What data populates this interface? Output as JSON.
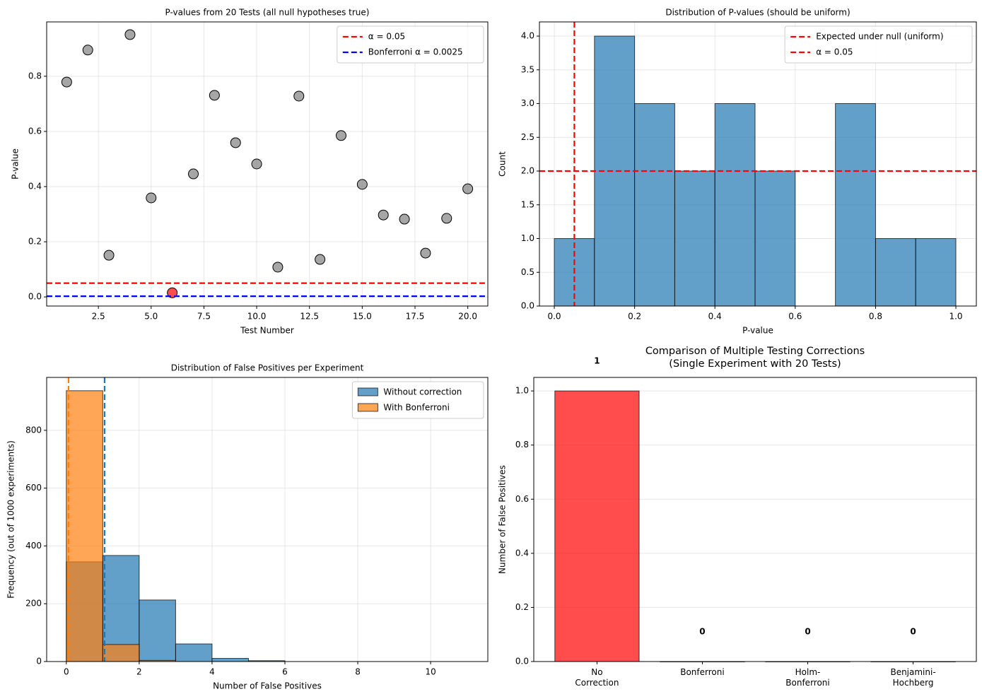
{
  "chart_data": [
    {
      "type": "scatter",
      "title": "P-values from 20 Tests (all null hypotheses true)",
      "x_label": "Test Number",
      "y_label": "P-value",
      "x": [
        1,
        2,
        3,
        4,
        5,
        6,
        7,
        8,
        9,
        10,
        11,
        12,
        13,
        14,
        15,
        16,
        17,
        18,
        19,
        20
      ],
      "values": [
        0.779,
        0.895,
        0.151,
        0.951,
        0.359,
        0.015,
        0.446,
        0.731,
        0.559,
        0.482,
        0.108,
        0.728,
        0.136,
        0.585,
        0.408,
        0.297,
        0.282,
        0.159,
        0.285,
        0.392
      ],
      "colors": [
        "#808080",
        "#808080",
        "#808080",
        "#808080",
        "#808080",
        "#ff0000",
        "#808080",
        "#808080",
        "#808080",
        "#808080",
        "#808080",
        "#808080",
        "#808080",
        "#808080",
        "#808080",
        "#808080",
        "#808080",
        "#808080",
        "#808080",
        "#808080"
      ],
      "hlines": [
        {
          "value": 0.05,
          "color": "#ff0000",
          "name": "α = 0.05"
        },
        {
          "value": 0.0025,
          "color": "#0000ff",
          "name": "Bonferroni α = 0.0025"
        }
      ],
      "xlim": [
        0.05,
        20.95
      ],
      "ylim": [
        -0.033,
        0.997
      ],
      "xticks": [
        2.5,
        {
          "value": 5,
          "label": "5.0"
        },
        7.5,
        {
          "value": 10,
          "label": "10.0"
        },
        12.5,
        {
          "value": 15,
          "label": "15.0"
        },
        17.5,
        {
          "value": 20,
          "label": "20.0"
        }
      ],
      "yticks": [
        {
          "value": 0,
          "label": "0.0"
        },
        0.2,
        0.4,
        0.6,
        0.8
      ],
      "grid": true,
      "legend": "upper right"
    },
    {
      "type": "histogram",
      "title": "Distribution of P-values (should be uniform)",
      "x_label": "P-value",
      "y_label": "Count",
      "bins": [
        0,
        0.1,
        0.2,
        0.3,
        0.4,
        0.5,
        0.6,
        0.7,
        0.8,
        0.9,
        1.0
      ],
      "values": [
        1,
        4,
        3,
        2,
        3,
        2,
        0,
        3,
        1,
        1
      ],
      "color": "#1f77b4",
      "hlines": [
        {
          "value": 2,
          "color": "#ff0000",
          "name": "Expected under null (uniform)"
        }
      ],
      "vlines": [
        {
          "value": 0.05,
          "color": "#ff0000",
          "name": "α = 0.05"
        }
      ],
      "xlim": [
        -0.037,
        1.051
      ],
      "ylim": [
        0,
        4.21
      ],
      "xticks": [
        {
          "value": 0,
          "label": "0.0"
        },
        0.2,
        0.4,
        0.6,
        0.8,
        {
          "value": 1,
          "label": "1.0"
        }
      ],
      "yticks": [
        {
          "value": 0,
          "label": "0.0"
        },
        0.5,
        {
          "value": 1,
          "label": "1.0"
        },
        1.5,
        {
          "value": 2,
          "label": "2.0"
        },
        2.5,
        {
          "value": 3,
          "label": "3.0"
        },
        3.5,
        {
          "value": 4,
          "label": "4.0"
        }
      ],
      "grid": true,
      "legend": "upper right"
    },
    {
      "type": "histogram",
      "title": "Distribution of False Positives per Experiment",
      "x_label": "Number of False Positives",
      "y_label": "Frequency (out of 1000 experiments)",
      "bins": [
        0,
        1,
        2,
        3,
        4,
        5,
        6,
        7,
        8,
        9,
        10,
        11
      ],
      "series": [
        {
          "name": "Without correction",
          "color": "#1f77b4",
          "values": [
            345,
            367,
            213,
            61,
            11,
            3,
            0,
            0,
            0,
            0,
            0
          ]
        },
        {
          "name": "With Bonferroni",
          "color": "#ff7f0e",
          "values": [
            937,
            59,
            4,
            0,
            0,
            0,
            0,
            0,
            0,
            0,
            0
          ]
        }
      ],
      "vlines": [
        {
          "value": 1.05,
          "color": "#1f77b4"
        },
        {
          "value": 0.06,
          "color": "#ff7f0e"
        }
      ],
      "xlim": [
        -0.54,
        11.57
      ],
      "ylim": [
        0,
        983
      ],
      "xticks": [
        0,
        2,
        4,
        6,
        8,
        10
      ],
      "yticks": [
        0,
        200,
        400,
        600,
        800
      ],
      "grid": true,
      "legend": "upper right"
    },
    {
      "type": "bar",
      "title": "Comparison of Multiple Testing Corrections\n(Single Experiment with 20 Tests)",
      "y_label": "Number of False Positives",
      "categories": [
        "No\nCorrection",
        "Bonferroni",
        "Holm-\nBonferroni",
        "Benjamini-\nHochberg"
      ],
      "values": [
        1,
        0,
        0,
        0
      ],
      "color": "#ff0000",
      "ylim": [
        0,
        1.05
      ],
      "yticks": [
        {
          "value": 0,
          "label": "0.0"
        },
        0.2,
        0.4,
        0.6,
        0.8,
        {
          "value": 1,
          "label": "1.0"
        }
      ],
      "grid": true
    }
  ]
}
